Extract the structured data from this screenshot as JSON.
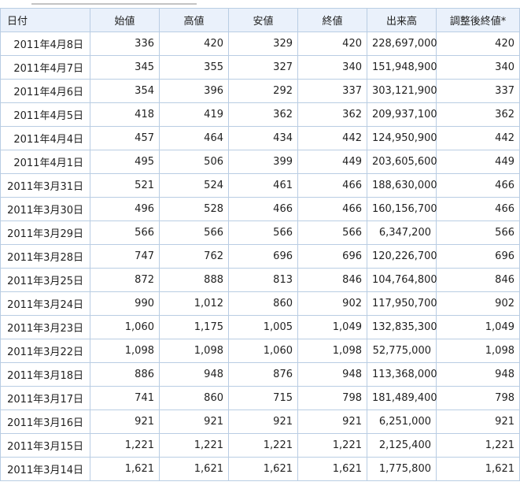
{
  "table": {
    "headers": [
      "日付",
      "始値",
      "高値",
      "安値",
      "終値",
      "出来高",
      "調整後終値*"
    ],
    "rows": [
      [
        "2011年4月8日",
        "336",
        "420",
        "329",
        "420",
        "228,697,000",
        "420"
      ],
      [
        "2011年4月7日",
        "345",
        "355",
        "327",
        "340",
        "151,948,900",
        "340"
      ],
      [
        "2011年4月6日",
        "354",
        "396",
        "292",
        "337",
        "303,121,900",
        "337"
      ],
      [
        "2011年4月5日",
        "418",
        "419",
        "362",
        "362",
        "209,937,100",
        "362"
      ],
      [
        "2011年4月4日",
        "457",
        "464",
        "434",
        "442",
        "124,950,900",
        "442"
      ],
      [
        "2011年4月1日",
        "495",
        "506",
        "399",
        "449",
        "203,605,600",
        "449"
      ],
      [
        "2011年3月31日",
        "521",
        "524",
        "461",
        "466",
        "188,630,000",
        "466"
      ],
      [
        "2011年3月30日",
        "496",
        "528",
        "466",
        "466",
        "160,156,700",
        "466"
      ],
      [
        "2011年3月29日",
        "566",
        "566",
        "566",
        "566",
        "6,347,200",
        "566"
      ],
      [
        "2011年3月28日",
        "747",
        "762",
        "696",
        "696",
        "120,226,700",
        "696"
      ],
      [
        "2011年3月25日",
        "872",
        "888",
        "813",
        "846",
        "104,764,800",
        "846"
      ],
      [
        "2011年3月24日",
        "990",
        "1,012",
        "860",
        "902",
        "117,950,700",
        "902"
      ],
      [
        "2011年3月23日",
        "1,060",
        "1,175",
        "1,005",
        "1,049",
        "132,835,300",
        "1,049"
      ],
      [
        "2011年3月22日",
        "1,098",
        "1,098",
        "1,060",
        "1,098",
        "52,775,000",
        "1,098"
      ],
      [
        "2011年3月18日",
        "886",
        "948",
        "876",
        "948",
        "113,368,000",
        "948"
      ],
      [
        "2011年3月17日",
        "741",
        "860",
        "715",
        "798",
        "181,489,400",
        "798"
      ],
      [
        "2011年3月16日",
        "921",
        "921",
        "921",
        "921",
        "6,251,000",
        "921"
      ],
      [
        "2011年3月15日",
        "1,221",
        "1,221",
        "1,221",
        "1,221",
        "2,125,400",
        "1,221"
      ],
      [
        "2011年3月14日",
        "1,621",
        "1,621",
        "1,621",
        "1,621",
        "1,775,800",
        "1,621"
      ]
    ]
  }
}
